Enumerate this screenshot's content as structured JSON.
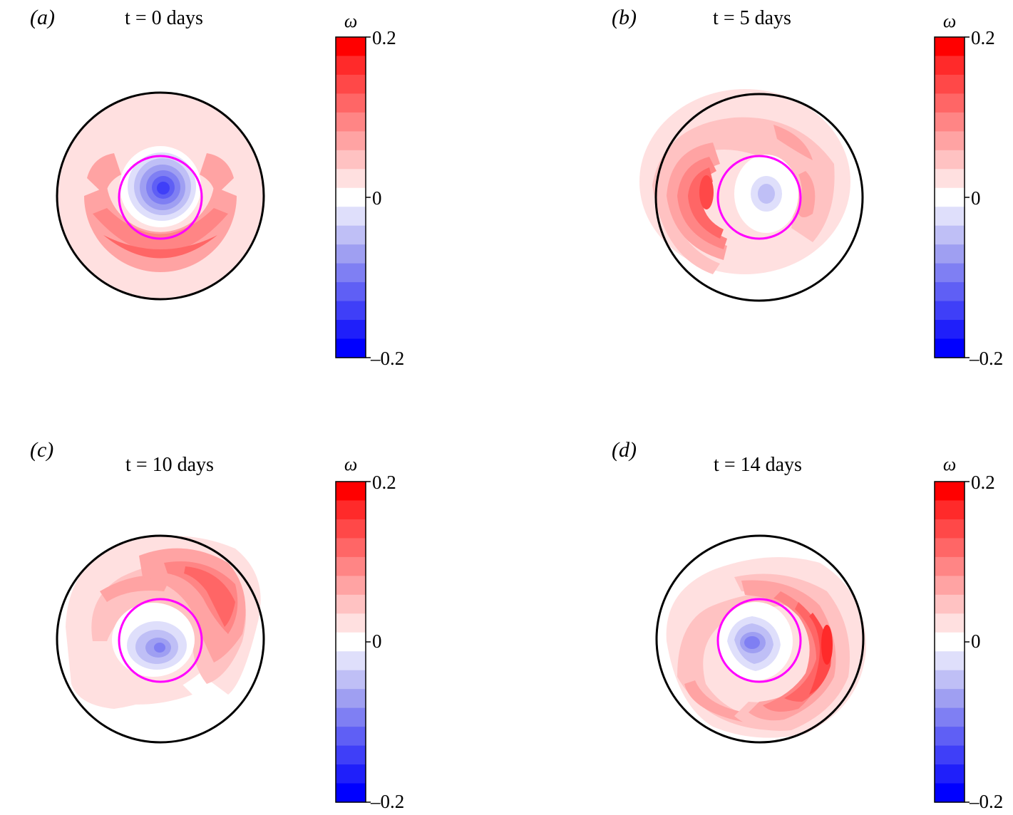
{
  "colors": {
    "scale": [
      "#0000ff",
      "#1f1ffa",
      "#3f3ff8",
      "#5f5ff5",
      "#7f7ff3",
      "#9f9ff2",
      "#bfbff6",
      "#dfdffb",
      "#ffffff",
      "#ffe0e0",
      "#ffc2c2",
      "#ffa3a3",
      "#ff8585",
      "#ff6666",
      "#ff4848",
      "#ff2a2a",
      "#ff0000"
    ],
    "outer_circle": "#000000",
    "inner_circle": "#ff00ff"
  },
  "panels": [
    {
      "label": "(a)",
      "title": "t = 0 days",
      "colorbar": {
        "title": "ω",
        "ticks": [
          "0.2",
          "0",
          "–0.2"
        ]
      }
    },
    {
      "label": "(b)",
      "title": "t = 5 days",
      "colorbar": {
        "title": "ω",
        "ticks": [
          "0.2",
          "0",
          "–0.2"
        ]
      }
    },
    {
      "label": "(c)",
      "title": "t = 10 days",
      "colorbar": {
        "title": "ω",
        "ticks": [
          "0.2",
          "0",
          "–0.2"
        ]
      }
    },
    {
      "label": "(d)",
      "title": "t = 14 days",
      "colorbar": {
        "title": "ω",
        "ticks": [
          "0.2",
          "0",
          "–0.2"
        ]
      }
    }
  ],
  "chart_data": [
    {
      "type": "heatmap",
      "title": "t = 0 days",
      "colorbar_label": "ω",
      "colorbar_range": [
        -0.2,
        0.2
      ],
      "colorbar_levels": 16,
      "features": {
        "center_min": -0.15,
        "outer_ring_max": 0.13
      }
    },
    {
      "type": "heatmap",
      "title": "t = 5 days",
      "colorbar_label": "ω",
      "colorbar_range": [
        -0.2,
        0.2
      ],
      "colorbar_levels": 16,
      "features": {
        "center_min": -0.06,
        "outer_ring_max": 0.14
      }
    },
    {
      "type": "heatmap",
      "title": "t = 10 days",
      "colorbar_label": "ω",
      "colorbar_range": [
        -0.2,
        0.2
      ],
      "colorbar_levels": 16,
      "features": {
        "center_min": -0.1,
        "outer_ring_max": 0.15
      }
    },
    {
      "type": "heatmap",
      "title": "t = 14 days",
      "colorbar_label": "ω",
      "colorbar_range": [
        -0.2,
        0.2
      ],
      "colorbar_levels": 16,
      "features": {
        "center_min": -0.14,
        "outer_ring_max": 0.17
      }
    }
  ]
}
